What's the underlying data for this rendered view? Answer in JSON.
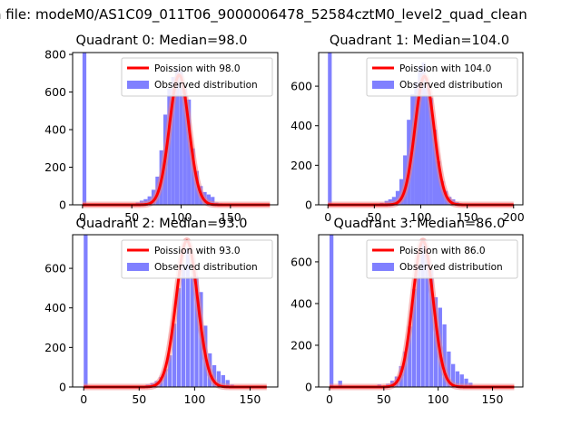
{
  "figure": {
    "suptitle": "n file: modeM0/AS1C09_011T06_9000006478_52584cztM0_level2_quad_clean"
  },
  "colors": {
    "hist": "#8080ff",
    "curve": "#ff0000",
    "curve_glow": "#f08080",
    "axis": "#000000"
  },
  "chart_data": [
    {
      "type": "bar",
      "title": "Quadrant 0: Median=98.0",
      "legend": {
        "curve": "Poission with 98.0",
        "hist": "Observed distribution",
        "placement": "upper right"
      },
      "xlim": [
        -10,
        198
      ],
      "ylim": [
        0,
        810
      ],
      "xticks": [
        0,
        50,
        100,
        150
      ],
      "yticks": [
        0,
        200,
        400,
        600,
        800
      ],
      "bin_width": 3.9,
      "hist_x": [
        0,
        54,
        58,
        62,
        66,
        70,
        74,
        78,
        82,
        86,
        90,
        94,
        98,
        102,
        106,
        110,
        114,
        118,
        122,
        126,
        130,
        134,
        138
      ],
      "hist_y": [
        810,
        12,
        22,
        30,
        45,
        80,
        150,
        290,
        480,
        620,
        680,
        720,
        710,
        620,
        560,
        300,
        180,
        100,
        68,
        55,
        42,
        12,
        8
      ],
      "poisson_mean": 98.0,
      "poisson_peak": 690,
      "poisson_sigma": 9.9,
      "curve_range": [
        0,
        190
      ]
    },
    {
      "type": "bar",
      "title": "Quadrant 1: Median=104.0",
      "legend": {
        "curve": "Poission with 104.0",
        "hist": "Observed distribution",
        "placement": "upper right"
      },
      "xlim": [
        -10,
        210
      ],
      "ylim": [
        0,
        770
      ],
      "xticks": [
        0,
        50,
        100,
        150,
        200
      ],
      "yticks": [
        0,
        200,
        400,
        600
      ],
      "bin_width": 4.1,
      "hist_x": [
        0,
        56,
        61,
        65,
        69,
        73,
        77,
        81,
        85,
        89,
        93,
        97,
        101,
        105,
        109,
        113,
        117,
        121,
        125,
        129,
        133,
        137,
        141
      ],
      "hist_y": [
        770,
        10,
        20,
        28,
        40,
        70,
        130,
        250,
        430,
        560,
        620,
        700,
        720,
        600,
        540,
        380,
        220,
        120,
        70,
        40,
        28,
        14,
        8
      ],
      "poisson_mean": 104.0,
      "poisson_peak": 650,
      "poisson_sigma": 10.2,
      "curve_range": [
        0,
        200
      ]
    },
    {
      "type": "bar",
      "title": "Quadrant 2: Median=93.0",
      "legend": {
        "curve": "Poission with 93.0",
        "hist": "Observed distribution",
        "placement": "upper right"
      },
      "xlim": [
        -10,
        175
      ],
      "ylim": [
        0,
        770
      ],
      "xticks": [
        0,
        50,
        100,
        150
      ],
      "yticks": [
        0,
        200,
        400,
        600
      ],
      "bin_width": 3.5,
      "hist_x": [
        0,
        56,
        60,
        64,
        68,
        72,
        76,
        80,
        84,
        88,
        92,
        96,
        100,
        104,
        108,
        112,
        116,
        120,
        124,
        128,
        132
      ],
      "hist_y": [
        770,
        12,
        20,
        30,
        50,
        90,
        160,
        320,
        500,
        620,
        700,
        560,
        560,
        480,
        310,
        170,
        110,
        80,
        60,
        35,
        12
      ],
      "poisson_mean": 93.0,
      "poisson_peak": 740,
      "poisson_sigma": 9.6,
      "curve_range": [
        0,
        165
      ]
    },
    {
      "type": "bar",
      "title": "Quadrant 3: Median=86.0",
      "legend": {
        "curve": "Poission with 86.0",
        "hist": "Observed distribution",
        "placement": "upper right"
      },
      "xlim": [
        -10,
        178
      ],
      "ylim": [
        0,
        730
      ],
      "xticks": [
        0,
        50,
        100,
        150
      ],
      "yticks": [
        0,
        200,
        400,
        600
      ],
      "bin_width": 3.6,
      "hist_x": [
        0,
        8,
        44,
        52,
        56,
        60,
        64,
        68,
        72,
        76,
        80,
        84,
        88,
        92,
        96,
        100,
        104,
        108,
        112,
        116,
        120,
        124,
        128
      ],
      "hist_y": [
        730,
        30,
        12,
        15,
        30,
        50,
        100,
        170,
        290,
        470,
        590,
        690,
        640,
        560,
        430,
        380,
        300,
        170,
        110,
        75,
        60,
        40,
        20
      ],
      "poisson_mean": 86.0,
      "poisson_peak": 700,
      "poisson_sigma": 9.3,
      "curve_range": [
        0,
        170
      ]
    }
  ]
}
